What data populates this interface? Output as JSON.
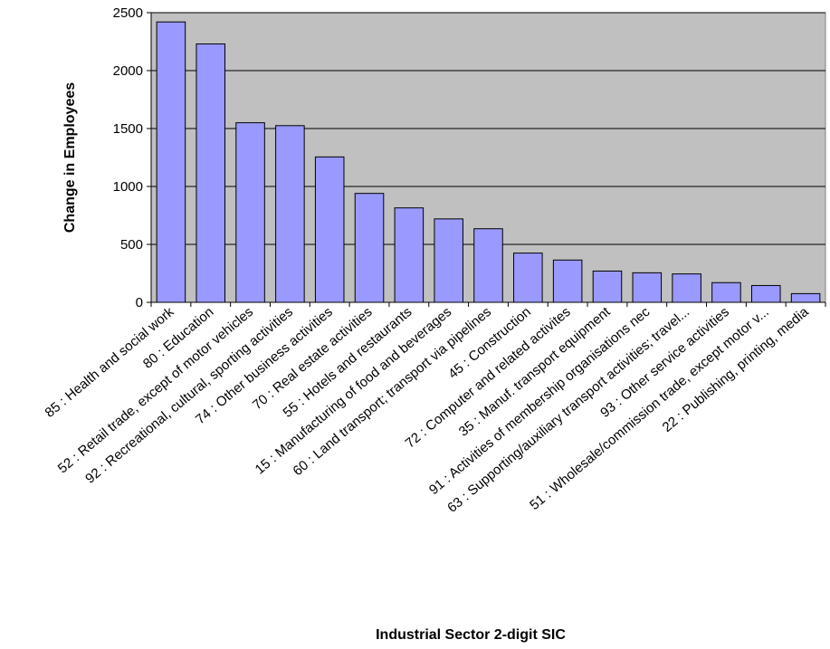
{
  "chart_data": {
    "type": "bar",
    "xlabel": "Industrial Sector 2-digit SIC",
    "ylabel": "Change in Employees",
    "ylim": [
      0,
      2500
    ],
    "yticks": [
      "0",
      "500",
      "1000",
      "1500",
      "2000",
      "2500"
    ],
    "grid": true,
    "plot_background": "#c0c0c0",
    "bar_color": "#9999ff",
    "categories": [
      "85 : Health and social work",
      "80 : Education",
      "52 : Retail trade, except of motor vehicles",
      "92 : Recreational, cultural, sporting activities",
      "74 : Other business activities",
      "70 : Real estate activities",
      "55 : Hotels and restaurants",
      "15 : Manufacturing of food and beverages",
      "60 : Land transport; transport via pipelines",
      "45 : Construction",
      "72 : Computer and related activites",
      "35 : Manuf. transport equipment",
      "91 : Activities of membership organisations nec",
      "63 : Supporting/auxiliary transport activities; travel...",
      "93 : Other service activities",
      "51 : Wholesale/commission trade, except motor v...",
      "22 : Publishing, printing, media"
    ],
    "values": [
      2420,
      2230,
      1550,
      1525,
      1255,
      940,
      815,
      720,
      635,
      425,
      365,
      270,
      255,
      245,
      170,
      145,
      75
    ]
  }
}
